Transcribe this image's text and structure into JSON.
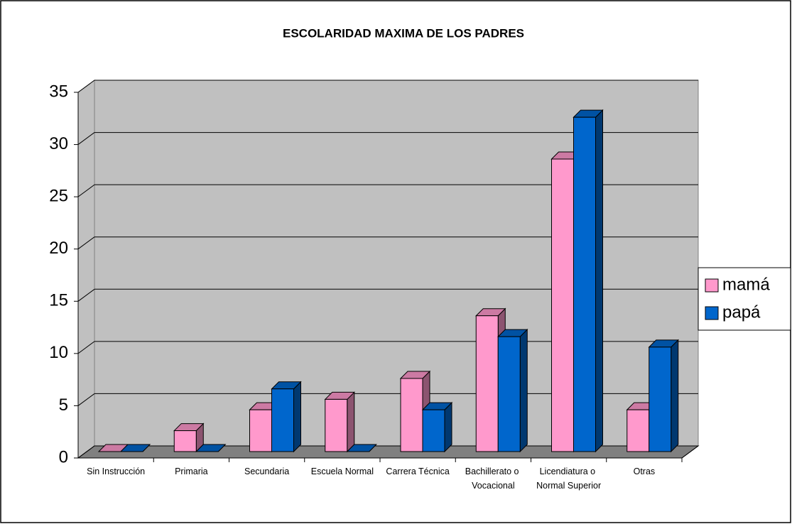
{
  "chart_data": {
    "type": "bar3d",
    "title": "ESCOLARIDAD MAXIMA DE LOS PADRES",
    "categories": [
      "Sin Instrucción",
      "Primaria",
      "Secundaria",
      "Escuela Normal",
      "Carrera Técnica",
      "Bachillerato o Vocacional",
      "Licendiatura o Normal Superior",
      "Otras"
    ],
    "series": [
      {
        "name": "mamá",
        "color": "#ff99cc",
        "values": [
          0,
          2,
          4,
          5,
          7,
          13,
          28,
          4
        ]
      },
      {
        "name": "papá",
        "color": "#0066cc",
        "values": [
          0,
          0,
          6,
          0,
          4,
          11,
          32,
          10
        ]
      }
    ],
    "ylim": [
      0,
      35
    ],
    "yticks": [
      0,
      5,
      10,
      15,
      20,
      25,
      30,
      35
    ],
    "grid": true,
    "legend": "right"
  }
}
